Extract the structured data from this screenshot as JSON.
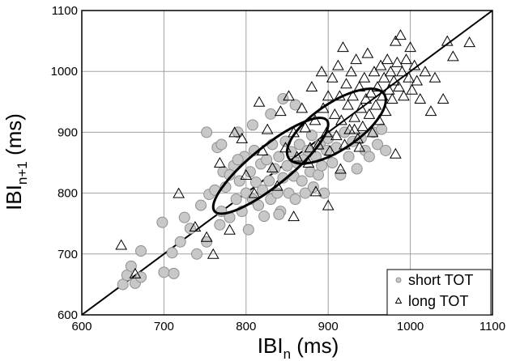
{
  "chart_data": {
    "type": "scatter",
    "xlabel": {
      "main": "IBI",
      "sub": "n",
      "unit": " (ms)"
    },
    "ylabel": {
      "main": "IBI",
      "sub": "n+1",
      "unit": " (ms)"
    },
    "xlim": [
      600,
      1100
    ],
    "ylim": [
      600,
      1100
    ],
    "xticks": [
      "600",
      "700",
      "800",
      "900",
      "1000",
      "1100"
    ],
    "yticks": [
      "600",
      "700",
      "800",
      "900",
      "1000",
      "1100"
    ],
    "grid": true,
    "legend_position": "bottom-right",
    "identity_line": {
      "from": [
        600,
        600
      ],
      "to": [
        1100,
        1100
      ]
    },
    "colors": {
      "short": "#c8c8c8",
      "short_edge": "#909090",
      "long_edge": "#000000",
      "ellipse": "#000000"
    },
    "series": [
      {
        "name": "short TOT",
        "marker": "circle",
        "points": [
          [
            650,
            650
          ],
          [
            655,
            665
          ],
          [
            660,
            680
          ],
          [
            665,
            652
          ],
          [
            672,
            705
          ],
          [
            672,
            662
          ],
          [
            698,
            752
          ],
          [
            700,
            670
          ],
          [
            710,
            702
          ],
          [
            712,
            668
          ],
          [
            720,
            720
          ],
          [
            725,
            760
          ],
          [
            732,
            742
          ],
          [
            740,
            700
          ],
          [
            745,
            780
          ],
          [
            752,
            720
          ],
          [
            752,
            900
          ],
          [
            755,
            798
          ],
          [
            762,
            805
          ],
          [
            765,
            875
          ],
          [
            768,
            748
          ],
          [
            770,
            770
          ],
          [
            772,
            835
          ],
          [
            775,
            810
          ],
          [
            780,
            760
          ],
          [
            785,
            845
          ],
          [
            788,
            790
          ],
          [
            792,
            820
          ],
          [
            795,
            770
          ],
          [
            798,
            860
          ],
          [
            800,
            800
          ],
          [
            803,
            740
          ],
          [
            805,
            835
          ],
          [
            808,
            790
          ],
          [
            810,
            870
          ],
          [
            812,
            818
          ],
          [
            815,
            780
          ],
          [
            818,
            848
          ],
          [
            820,
            805
          ],
          [
            822,
            762
          ],
          [
            825,
            855
          ],
          [
            828,
            820
          ],
          [
            830,
            790
          ],
          [
            832,
            880
          ],
          [
            835,
            840
          ],
          [
            838,
            800
          ],
          [
            840,
            860
          ],
          [
            842,
            770
          ],
          [
            845,
            825
          ],
          [
            848,
            885
          ],
          [
            850,
            845
          ],
          [
            852,
            800
          ],
          [
            855,
            868
          ],
          [
            858,
            828
          ],
          [
            860,
            790
          ],
          [
            862,
            850
          ],
          [
            865,
            880
          ],
          [
            868,
            820
          ],
          [
            870,
            855
          ],
          [
            872,
            800
          ],
          [
            875,
            870
          ],
          [
            878,
            835
          ],
          [
            880,
            895
          ],
          [
            882,
            810
          ],
          [
            885,
            860
          ],
          [
            888,
            830
          ],
          [
            890,
            880
          ],
          [
            892,
            845
          ],
          [
            895,
            800
          ],
          [
            898,
            870
          ],
          [
            900,
            890
          ],
          [
            905,
            850
          ],
          [
            910,
            875
          ],
          [
            915,
            830
          ],
          [
            920,
            900
          ],
          [
            925,
            860
          ],
          [
            930,
            885
          ],
          [
            935,
            840
          ],
          [
            940,
            890
          ],
          [
            945,
            870
          ],
          [
            950,
            860
          ],
          [
            955,
            900
          ],
          [
            960,
            880
          ],
          [
            965,
            905
          ],
          [
            970,
            870
          ],
          [
            845,
            955
          ],
          [
            808,
            912
          ],
          [
            790,
            900
          ],
          [
            780,
            830
          ],
          [
            830,
            930
          ],
          [
            860,
            945
          ],
          [
            770,
            880
          ],
          [
            790,
            855
          ],
          [
            840,
            765
          ]
        ]
      },
      {
        "name": "long TOT",
        "marker": "triangle",
        "points": [
          [
            648,
            715
          ],
          [
            665,
            668
          ],
          [
            718,
            800
          ],
          [
            738,
            745
          ],
          [
            752,
            728
          ],
          [
            760,
            700
          ],
          [
            768,
            850
          ],
          [
            780,
            740
          ],
          [
            786,
            900
          ],
          [
            795,
            890
          ],
          [
            800,
            830
          ],
          [
            810,
            800
          ],
          [
            816,
            950
          ],
          [
            820,
            870
          ],
          [
            826,
            905
          ],
          [
            832,
            842
          ],
          [
            838,
            812
          ],
          [
            842,
            935
          ],
          [
            848,
            875
          ],
          [
            852,
            960
          ],
          [
            858,
            900
          ],
          [
            862,
            860
          ],
          [
            868,
            940
          ],
          [
            872,
            908
          ],
          [
            876,
            850
          ],
          [
            880,
            975
          ],
          [
            884,
            920
          ],
          [
            888,
            880
          ],
          [
            892,
            1000
          ],
          [
            894,
            940
          ],
          [
            898,
            900
          ],
          [
            900,
            960
          ],
          [
            902,
            870
          ],
          [
            905,
            990
          ],
          [
            908,
            930
          ],
          [
            910,
            895
          ],
          [
            912,
            1010
          ],
          [
            914,
            960
          ],
          [
            916,
            920
          ],
          [
            918,
            1040
          ],
          [
            920,
            880
          ],
          [
            922,
            980
          ],
          [
            924,
            945
          ],
          [
            926,
            905
          ],
          [
            928,
            1000
          ],
          [
            930,
            960
          ],
          [
            932,
            925
          ],
          [
            934,
            1020
          ],
          [
            936,
            890
          ],
          [
            938,
            975
          ],
          [
            940,
            940
          ],
          [
            942,
            910
          ],
          [
            944,
            990
          ],
          [
            946,
            955
          ],
          [
            948,
            1030
          ],
          [
            950,
            930
          ],
          [
            952,
            965
          ],
          [
            954,
            900
          ],
          [
            956,
            1000
          ],
          [
            958,
            945
          ],
          [
            960,
            975
          ],
          [
            962,
            920
          ],
          [
            964,
            1010
          ],
          [
            966,
            960
          ],
          [
            968,
            990
          ],
          [
            970,
            935
          ],
          [
            972,
            1020
          ],
          [
            974,
            970
          ],
          [
            976,
            1000
          ],
          [
            978,
            955
          ],
          [
            980,
            985
          ],
          [
            982,
            1050
          ],
          [
            984,
            1015
          ],
          [
            986,
            975
          ],
          [
            988,
            1060
          ],
          [
            990,
            1000
          ],
          [
            992,
            960
          ],
          [
            995,
            1020
          ],
          [
            998,
            990
          ],
          [
            1000,
            1040
          ],
          [
            1002,
            970
          ],
          [
            1005,
            1010
          ],
          [
            1008,
            985
          ],
          [
            1012,
            955
          ],
          [
            1018,
            1000
          ],
          [
            1025,
            935
          ],
          [
            1030,
            990
          ],
          [
            1040,
            955
          ],
          [
            1045,
            1050
          ],
          [
            1052,
            1025
          ],
          [
            1072,
            1048
          ],
          [
            982,
            865
          ],
          [
            938,
            876
          ],
          [
            900,
            780
          ],
          [
            858,
            762
          ],
          [
            885,
            803
          ],
          [
            915,
            840
          ],
          [
            878,
            875
          ],
          [
            932,
            905
          ]
        ]
      }
    ],
    "ellipses": [
      {
        "center": [
          830,
          845
        ],
        "rx": 88,
        "ry": 32,
        "angle_deg": 39
      },
      {
        "center": [
          910,
          910
        ],
        "rx": 70,
        "ry": 38,
        "angle_deg": 34
      }
    ]
  }
}
